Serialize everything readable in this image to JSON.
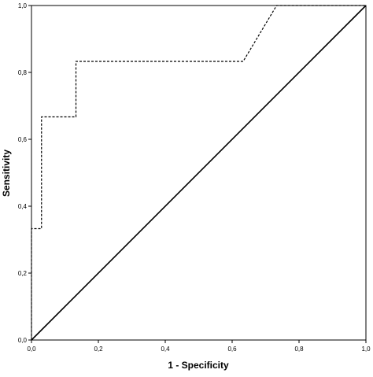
{
  "chart_data": {
    "type": "line",
    "title": "",
    "xlabel": "1 - Specificity",
    "ylabel": "Sensitivity",
    "xlim": [
      0,
      1
    ],
    "ylim": [
      0,
      1
    ],
    "grid": false,
    "legend": "none",
    "x_ticks": [
      0,
      0.2,
      0.4,
      0.6,
      0.8,
      1.0
    ],
    "y_ticks": [
      0,
      0.2,
      0.4,
      0.6,
      0.8,
      1.0
    ],
    "x_tick_labels": [
      "0,0",
      "0,2",
      "0,4",
      "0,6",
      "0,8",
      "1,0"
    ],
    "y_tick_labels": [
      "0,0",
      "0,2",
      "0,4",
      "0,6",
      "0,8",
      "1,0"
    ],
    "series": [
      {
        "style": "dashed",
        "color": "#000000",
        "x": [
          0,
          0,
          0.03,
          0.03,
          0.133,
          0.133,
          0.633,
          0.733,
          1.0
        ],
        "y": [
          0,
          0.333,
          0.333,
          0.667,
          0.667,
          0.833,
          0.833,
          1.0,
          1.0
        ]
      },
      {
        "style": "solid",
        "color": "#000000",
        "x": [
          0,
          1
        ],
        "y": [
          0,
          1
        ]
      }
    ]
  }
}
